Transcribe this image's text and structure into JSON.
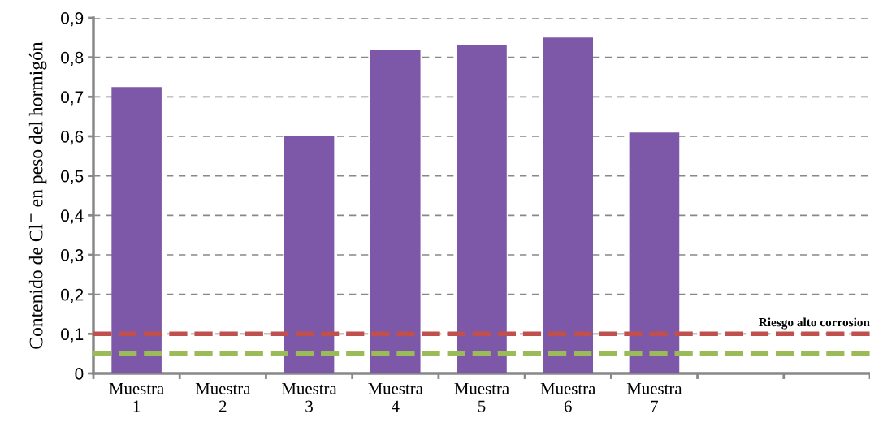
{
  "chart_data": {
    "type": "bar",
    "ylabel": "Contenido de Cl$^{−}$ en peso del hormigón",
    "categories": [
      "Muestra\n1",
      "Muestra\n2",
      "Muestra\n3",
      "Muestra\n4",
      "Muestra\n5",
      "Muestra\n6",
      "Muestra\n7",
      null,
      null
    ],
    "values": [
      0.725,
      null,
      0.6,
      0.82,
      0.83,
      0.85,
      0.61,
      null,
      null
    ],
    "color": "#7d58a8",
    "ylim": [
      0,
      0.9
    ],
    "yticks": [
      {
        "value": 0,
        "label": "0"
      },
      {
        "value": 0.1,
        "label": "0,1"
      },
      {
        "value": 0.2,
        "label": "0,2"
      },
      {
        "value": 0.3,
        "label": "0,3"
      },
      {
        "value": 0.4,
        "label": "0,4"
      },
      {
        "value": 0.5,
        "label": "0,5"
      },
      {
        "value": 0.6,
        "label": "0,6"
      },
      {
        "value": 0.7,
        "label": "0,7"
      },
      {
        "value": 0.8,
        "label": "0,8"
      },
      {
        "value": 0.9,
        "label": "0,9"
      }
    ],
    "grid": "y",
    "ref_lines": [
      {
        "axis": "y",
        "value": 0.1,
        "label": "Riesgo alto corrosion",
        "color": "#c0504d",
        "line_style": "dashed"
      },
      {
        "axis": "y",
        "value": 0.05,
        "label": null,
        "color": "#9bbb59",
        "line_style": "dashed"
      }
    ]
  }
}
